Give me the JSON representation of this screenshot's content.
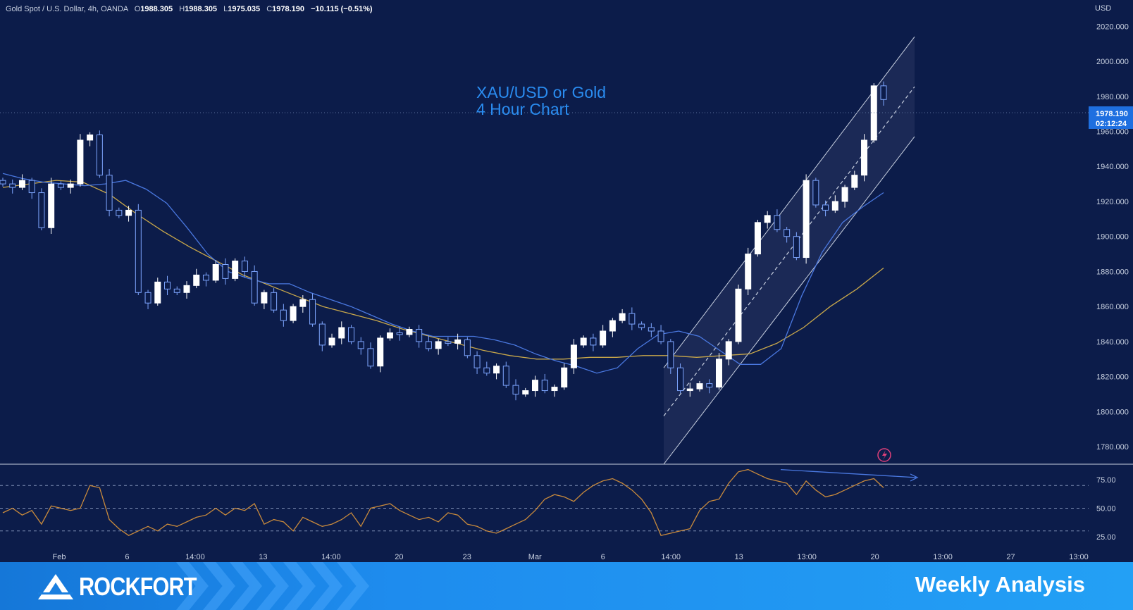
{
  "header": {
    "symbol": "Gold Spot / U.S. Dollar, 4h, OANDA",
    "o_label": "O",
    "o_value": "1988.305",
    "h_label": "H",
    "h_value": "1988.305",
    "l_label": "L",
    "l_value": "1975.035",
    "c_label": "C",
    "c_value": "1978.190",
    "change": "−10.115 (−0.51%)"
  },
  "annotation": {
    "line1": "XAU/USD or Gold",
    "line2": "4 Hour Chart"
  },
  "price_badge": {
    "price": "1978.190",
    "countdown": "02:12:24"
  },
  "footer": {
    "brand": "ROCKFORT",
    "tagline": "Weekly Analysis"
  },
  "colors": {
    "background": "#0c1c4a",
    "candle_up": "#ffffff",
    "candle_down": "#7ea6ff",
    "ma_fast": "#4a78e0",
    "ma_slow": "#c9a84a",
    "rsi": "#c98a3c",
    "channel": "#c8d0e0",
    "accent": "#1e6fe0"
  },
  "chart_data": {
    "type": "candlestick",
    "currency_label": "USD",
    "ylim": [
      1770,
      2035
    ],
    "y_ticks": [
      "2020.000",
      "2000.000",
      "1980.000",
      "1960.000",
      "1940.000",
      "1920.000",
      "1900.000",
      "1880.000",
      "1860.000",
      "1840.000",
      "1820.000",
      "1800.000",
      "1780.000"
    ],
    "x_ticks": [
      "Feb",
      "6",
      "14:00",
      "13",
      "14:00",
      "20",
      "23",
      "Mar",
      "6",
      "14:00",
      "13",
      "13:00",
      "20",
      "13:00",
      "27",
      "13:00"
    ],
    "close_path": [
      1930,
      1928,
      1932,
      1925,
      1905,
      1930,
      1928,
      1930,
      1955,
      1958,
      1935,
      1915,
      1912,
      1915,
      1868,
      1862,
      1874,
      1870,
      1868,
      1872,
      1878,
      1875,
      1884,
      1876,
      1886,
      1880,
      1862,
      1868,
      1858,
      1852,
      1860,
      1864,
      1850,
      1838,
      1842,
      1848,
      1840,
      1836,
      1826,
      1842,
      1845,
      1844,
      1847,
      1840,
      1836,
      1840,
      1839,
      1841,
      1832,
      1825,
      1822,
      1826,
      1815,
      1810,
      1812,
      1818,
      1812,
      1814,
      1825,
      1838,
      1842,
      1838,
      1846,
      1852,
      1856,
      1850,
      1848,
      1846,
      1840,
      1825,
      1812,
      1813,
      1816,
      1814,
      1830,
      1840,
      1870,
      1890,
      1908,
      1912,
      1904,
      1900,
      1888,
      1932,
      1918,
      1915,
      1920,
      1928,
      1935,
      1955,
      1986,
      1978.19
    ],
    "ma_fast": [
      1936,
      1933,
      1931,
      1930,
      1929,
      1930,
      1932,
      1927,
      1919,
      1905,
      1890,
      1880,
      1876,
      1873,
      1873,
      1868,
      1864,
      1860,
      1855,
      1850,
      1846,
      1843,
      1843,
      1843,
      1841,
      1838,
      1833,
      1829,
      1826,
      1822,
      1825,
      1836,
      1844,
      1846,
      1843,
      1835,
      1827,
      1827,
      1836,
      1866,
      1891,
      1908,
      1917,
      1925
    ],
    "ma_slow": [
      1928,
      1930,
      1932,
      1931,
      1924,
      1913,
      1903,
      1894,
      1886,
      1878,
      1872,
      1866,
      1860,
      1856,
      1852,
      1847,
      1843,
      1839,
      1835,
      1832,
      1830,
      1830,
      1831,
      1831,
      1832,
      1832,
      1831,
      1832,
      1833,
      1839,
      1848,
      1860,
      1870,
      1882
    ],
    "channel": {
      "upper": [
        [
          1825,
          2014
        ],
        [
          1770,
          1957
        ]
      ],
      "mid": [
        [
          1805,
          1985
        ]
      ],
      "lower": [
        [
          1775,
          1958
        ]
      ]
    },
    "rsi": {
      "ylim": [
        15,
        85
      ],
      "ticks": [
        "75.00",
        "50.00",
        "25.00"
      ],
      "levels": [
        70,
        50,
        30
      ],
      "values": [
        46,
        50,
        44,
        48,
        36,
        52,
        50,
        48,
        50,
        70,
        68,
        40,
        32,
        26,
        30,
        34,
        30,
        36,
        34,
        38,
        42,
        44,
        50,
        44,
        50,
        48,
        54,
        36,
        40,
        38,
        30,
        42,
        38,
        34,
        36,
        40,
        46,
        34,
        50,
        52,
        54,
        48,
        44,
        40,
        42,
        38,
        46,
        44,
        36,
        34,
        30,
        28,
        32,
        36,
        40,
        48,
        58,
        62,
        60,
        56,
        64,
        70,
        74,
        76,
        72,
        66,
        58,
        46,
        26,
        28,
        30,
        32,
        48,
        56,
        58,
        72,
        82,
        84,
        80,
        76,
        74,
        72,
        62,
        74,
        66,
        60,
        62,
        66,
        70,
        74,
        76,
        68
      ],
      "divergence": [
        84,
        77
      ]
    }
  }
}
